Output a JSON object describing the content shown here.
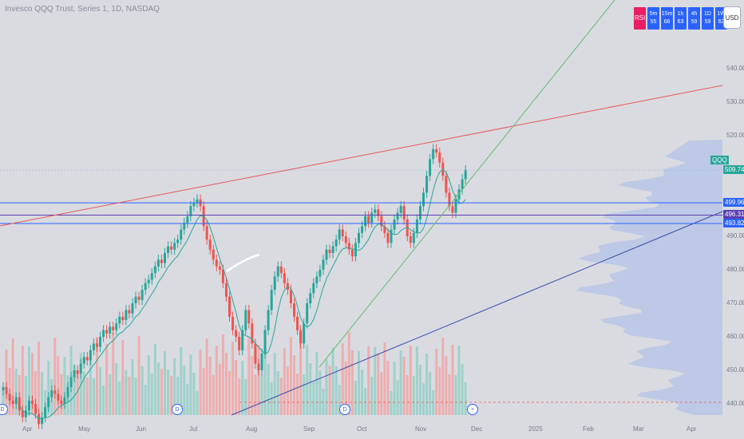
{
  "title": "Invesco QQQ Trust, Series 1, 1D, NASDAQ",
  "currency": "USD",
  "symbol_label": "QQQ",
  "timeframes": [
    {
      "label": "RSI",
      "value": ""
    },
    {
      "label": "5m",
      "value": "55"
    },
    {
      "label": "15m",
      "value": "66"
    },
    {
      "label": "1h",
      "value": "63"
    },
    {
      "label": "4h",
      "value": "59"
    },
    {
      "label": "1D",
      "value": "59"
    },
    {
      "label": "1W",
      "value": "62"
    }
  ],
  "price_labels": [
    {
      "text": "509.74",
      "value": 509.74,
      "color": "#26a69a"
    },
    {
      "text": "499.96",
      "value": 499.96,
      "color": "#2962ff"
    },
    {
      "text": "496.31",
      "value": 496.31,
      "color": "#5c3fb0"
    },
    {
      "text": "493.82",
      "value": 493.82,
      "color": "#2962ff"
    }
  ],
  "colors": {
    "up": "#26a69a",
    "down": "#ef5350",
    "resistance": "#e85757",
    "support": "#3949ab",
    "trend": "#66bb6a",
    "level": "#2962ff",
    "ma": "#26a69a"
  },
  "chart_data": {
    "type": "candlestick",
    "y_ticks": [
      440,
      450,
      460,
      470,
      480,
      490,
      500,
      510,
      520,
      530,
      540
    ],
    "y_tick_labels": [
      "440.00",
      "450.00",
      "460.00",
      "470.00",
      "480.00",
      "490.00",
      "500.00",
      "510.00",
      "520.00",
      "530.00",
      "540.00"
    ],
    "x_ticks": [
      "Apr",
      "May",
      "Jun",
      "Jul",
      "Aug",
      "Sep",
      "Oct",
      "Nov",
      "Dec",
      "2025",
      "Feb",
      "Mar",
      "Apr"
    ],
    "last_close": 509.74,
    "horizontal_levels": [
      499.96,
      496.31,
      493.82
    ],
    "closes": [
      445,
      443,
      441,
      440,
      442,
      438,
      436,
      438,
      441,
      440,
      437,
      434,
      436,
      439,
      442,
      444,
      443,
      441,
      440,
      442,
      445,
      448,
      450,
      449,
      452,
      454,
      453,
      456,
      458,
      457,
      460,
      462,
      461,
      463,
      462,
      464,
      466,
      465,
      468,
      467,
      470,
      472,
      471,
      474,
      476,
      477,
      479,
      481,
      483,
      482,
      485,
      487,
      486,
      488,
      489,
      492,
      494,
      496,
      499,
      500,
      501,
      499,
      493,
      489,
      486,
      483,
      481,
      480,
      476,
      472,
      466,
      462,
      460,
      456,
      462,
      468,
      464,
      458,
      452,
      450,
      455,
      462,
      468,
      474,
      478,
      481,
      479,
      476,
      474,
      470,
      466,
      462,
      458,
      464,
      470,
      473,
      476,
      478,
      480,
      483,
      486,
      485,
      487,
      489,
      492,
      490,
      488,
      486,
      484,
      488,
      491,
      493,
      496,
      494,
      497,
      498,
      496,
      493,
      491,
      488,
      492,
      495,
      497,
      499,
      495,
      490,
      488,
      491,
      495,
      499,
      503,
      508,
      513,
      516,
      515,
      512,
      508,
      503,
      499,
      497,
      501,
      504,
      507,
      509.74
    ]
  }
}
